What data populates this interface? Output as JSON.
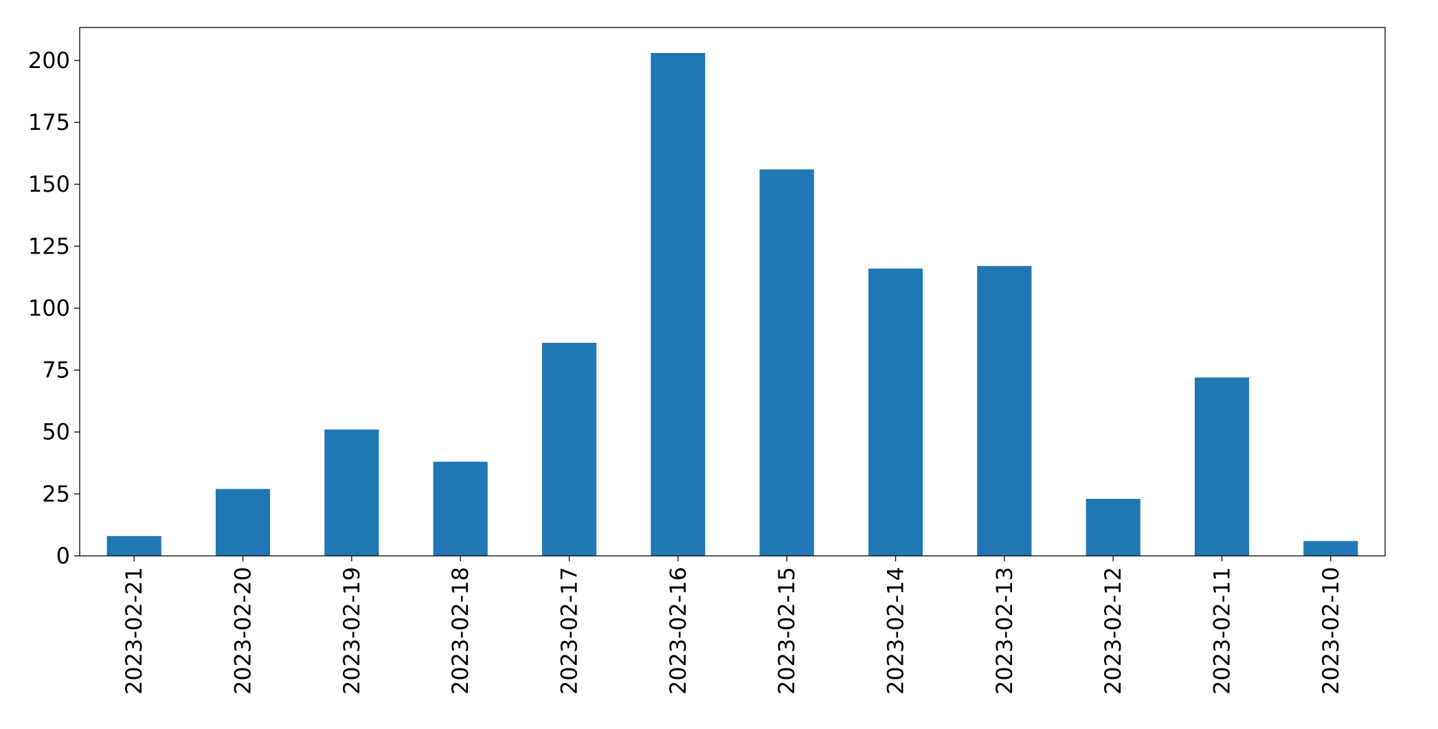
{
  "chart_data": {
    "type": "bar",
    "categories": [
      "2023-02-21",
      "2023-02-20",
      "2023-02-19",
      "2023-02-18",
      "2023-02-17",
      "2023-02-16",
      "2023-02-15",
      "2023-02-14",
      "2023-02-13",
      "2023-02-12",
      "2023-02-11",
      "2023-02-10"
    ],
    "values": [
      8,
      27,
      51,
      38,
      86,
      203,
      156,
      116,
      117,
      23,
      72,
      6
    ],
    "color": "#1f77b4",
    "ylim": [
      0,
      213.3
    ],
    "yticks": [
      0,
      25,
      50,
      75,
      100,
      125,
      150,
      175,
      200
    ],
    "grid": false
  }
}
